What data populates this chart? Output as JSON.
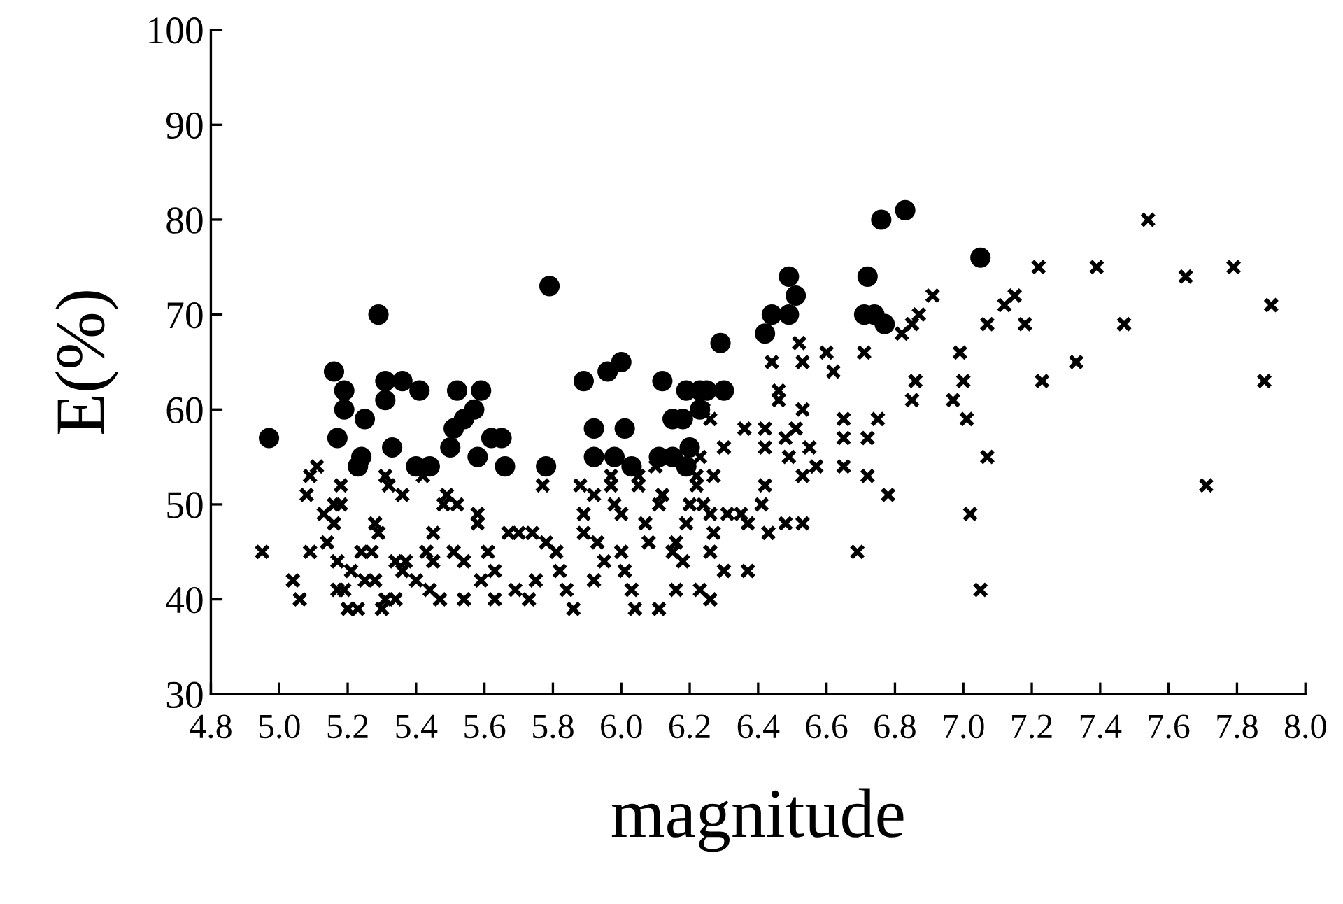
{
  "chart_data": {
    "type": "scatter",
    "xlabel": "magnitude",
    "ylabel": "E(%)",
    "xlim": [
      4.8,
      8.0
    ],
    "ylim": [
      30,
      100
    ],
    "xticks": [
      4.8,
      {
        "value": 5.0,
        "label": "5.0"
      },
      5.2,
      5.4,
      5.6,
      5.8,
      {
        "value": 6.0,
        "label": "6.0"
      },
      6.2,
      6.4,
      6.6,
      6.8,
      {
        "value": 7.0,
        "label": "7.0"
      },
      7.2,
      7.4,
      7.6,
      7.8,
      {
        "value": 8.0,
        "label": "8.0"
      }
    ],
    "yticks": [
      30,
      40,
      50,
      60,
      70,
      80,
      90,
      100
    ],
    "grid": false,
    "series": [
      {
        "color": "#000000",
        "marker": "circle",
        "x": [
          4.97,
          5.16,
          5.17,
          5.19,
          5.19,
          5.23,
          5.24,
          5.25,
          5.29,
          5.31,
          5.31,
          5.36,
          5.33,
          5.41,
          5.4,
          5.44,
          5.51,
          5.5,
          5.52,
          5.54,
          5.57,
          5.58,
          5.59,
          5.62,
          5.65,
          5.66,
          5.78,
          5.79,
          5.89,
          5.92,
          5.92,
          5.96,
          6.0,
          5.98,
          6.01,
          6.03,
          6.12,
          6.15,
          6.18,
          6.19,
          6.23,
          6.23,
          6.25,
          6.29,
          6.3,
          6.11,
          6.15,
          6.19,
          6.2,
          6.42,
          6.44,
          6.49,
          6.49,
          6.51,
          6.76,
          6.83,
          6.72,
          6.71,
          6.74,
          6.77,
          7.05
        ],
        "values": [
          57,
          64,
          57,
          62,
          60,
          54,
          55,
          59,
          70,
          61,
          63,
          63,
          56,
          62,
          54,
          54,
          58,
          56,
          62,
          59,
          60,
          55,
          62,
          57,
          57,
          54,
          54,
          73,
          63,
          58,
          55,
          64,
          65,
          55,
          58,
          54,
          63,
          59,
          59,
          62,
          62,
          60,
          62,
          67,
          62,
          55,
          55,
          54,
          56,
          68,
          70,
          70,
          74,
          72,
          80,
          81,
          74,
          70,
          70,
          69,
          76
        ]
      },
      {
        "color": "#000000",
        "marker": "cross",
        "x": [
          7.54,
          7.22,
          7.39,
          7.65,
          7.79,
          7.9,
          7.88,
          7.71,
          7.47,
          7.33,
          7.23,
          7.18,
          7.07,
          7.15,
          7.12,
          7.05,
          7.02,
          7.07,
          7.01,
          7.0,
          6.99,
          6.97,
          6.91,
          6.87,
          6.85,
          6.82,
          6.86,
          6.85,
          6.78,
          6.72,
          6.69,
          6.72,
          6.75,
          6.71,
          6.65,
          6.65,
          6.65,
          6.62,
          6.6,
          6.57,
          6.55,
          6.53,
          6.53,
          6.52,
          6.53,
          6.51,
          6.49,
          6.48,
          6.46,
          6.46,
          6.44,
          6.42,
          6.42,
          6.42,
          6.48,
          6.53,
          6.43,
          6.41,
          4.95,
          5.04,
          5.06,
          5.09,
          5.14,
          5.08,
          5.09,
          5.11,
          5.13,
          5.16,
          5.16,
          5.18,
          5.18,
          5.17,
          5.17,
          5.19,
          5.2,
          5.23,
          5.21,
          5.24,
          5.25,
          5.28,
          5.29,
          5.27,
          5.28,
          5.3,
          5.31,
          5.31,
          5.32,
          5.36,
          5.34,
          5.36,
          5.37,
          5.34,
          5.4,
          5.42,
          5.45,
          5.43,
          5.45,
          5.44,
          5.47,
          5.48,
          5.49,
          5.52,
          5.51,
          5.54,
          5.54,
          5.58,
          5.58,
          5.59,
          5.61,
          5.63,
          5.63,
          5.67,
          5.7,
          5.74,
          5.69,
          5.73,
          5.75,
          5.77,
          5.78,
          5.81,
          5.82,
          5.84,
          5.86,
          5.88,
          5.89,
          5.89,
          5.92,
          5.93,
          5.95,
          5.92,
          5.97,
          5.97,
          5.98,
          6.0,
          6.0,
          6.01,
          6.03,
          6.04,
          6.05,
          6.07,
          6.08,
          6.11,
          6.11,
          6.12,
          6.15,
          6.16,
          6.16,
          6.18,
          6.19,
          6.2,
          6.23,
          6.24,
          6.26,
          6.27,
          6.26,
          6.3,
          6.31,
          6.35,
          6.37,
          6.37,
          6.36,
          6.3,
          6.27,
          6.26,
          6.23,
          6.24,
          6.22,
          6.1,
          6.05,
          6.26,
          6.22
        ],
        "values": [
          80,
          75,
          75,
          74,
          75,
          71,
          63,
          52,
          69,
          65,
          63,
          69,
          69,
          72,
          71,
          41,
          49,
          55,
          59,
          63,
          66,
          61,
          72,
          70,
          69,
          68,
          63,
          61,
          51,
          53,
          45,
          57,
          59,
          66,
          59,
          57,
          54,
          64,
          66,
          54,
          56,
          53,
          65,
          67,
          60,
          58,
          55,
          57,
          62,
          61,
          65,
          58,
          56,
          52,
          48,
          48,
          47,
          50,
          45,
          42,
          40,
          45,
          46,
          51,
          53,
          54,
          49,
          48,
          50,
          50,
          52,
          44,
          41,
          41,
          39,
          39,
          43,
          45,
          42,
          48,
          47,
          45,
          42,
          39,
          40,
          53,
          52,
          51,
          44,
          43,
          44,
          40,
          42,
          53,
          47,
          45,
          44,
          41,
          40,
          50,
          51,
          50,
          45,
          44,
          40,
          49,
          48,
          42,
          45,
          43,
          40,
          47,
          47,
          47,
          41,
          40,
          42,
          52,
          46,
          45,
          43,
          41,
          39,
          52,
          49,
          47,
          51,
          46,
          44,
          42,
          52,
          53,
          50,
          49,
          45,
          43,
          41,
          39,
          52,
          48,
          46,
          39,
          50,
          51,
          45,
          46,
          41,
          44,
          48,
          50,
          41,
          50,
          49,
          47,
          40,
          43,
          49,
          49,
          43,
          48,
          58,
          56,
          53,
          59,
          55,
          60,
          53,
          54,
          53,
          45,
          52
        ]
      }
    ]
  }
}
